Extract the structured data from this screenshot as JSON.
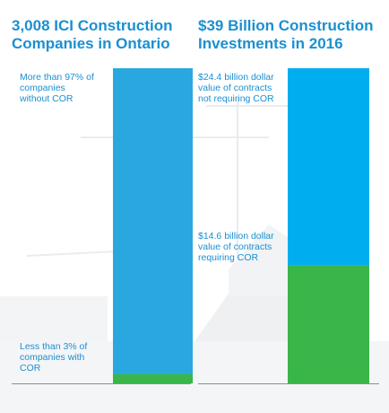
{
  "colors": {
    "title": "#1b8fd1",
    "label": "#1b8fd1",
    "blue": "#29a8e0",
    "blue_right": "#00aeef",
    "green": "#3ab54a",
    "baseline": "#8a8f95"
  },
  "left_chart": {
    "title_line1": "3,008 ICI Construction",
    "title_line2": "Companies in Ontario",
    "label_top_1": "More than 97% of",
    "label_top_2": "companies",
    "label_top_3": "without COR",
    "label_bottom_1": "Less than 3% of",
    "label_bottom_2": "companies with",
    "label_bottom_3": "COR"
  },
  "right_chart": {
    "title_line1": "$39 Billion Construction",
    "title_line2": "Investments in 2016",
    "label_top_1": "$24.4 billion dollar",
    "label_top_2": "value of contracts",
    "label_top_3": "not requiring COR",
    "label_bottom_1": "$14.6 billion dollar",
    "label_bottom_2": "value of contracts",
    "label_bottom_3": "requiring COR"
  },
  "chart_data": [
    {
      "type": "bar",
      "stacked": true,
      "title": "3,008 ICI Construction Companies in Ontario",
      "categories": [
        ""
      ],
      "series": [
        {
          "name": "Less than 3% of companies with COR",
          "values": [
            3
          ],
          "color": "#3ab54a"
        },
        {
          "name": "More than 97% of companies without COR",
          "values": [
            97
          ],
          "color": "#29a8e0"
        }
      ],
      "ylim": [
        0,
        100
      ],
      "grid": false
    },
    {
      "type": "bar",
      "stacked": true,
      "title": "$39 Billion Construction Investments in 2016",
      "categories": [
        ""
      ],
      "series": [
        {
          "name": "$14.6 billion dollar value of contracts requiring COR",
          "values": [
            14.6
          ],
          "color": "#3ab54a"
        },
        {
          "name": "$24.4 billion dollar value of contracts not requiring COR",
          "values": [
            24.4
          ],
          "color": "#00aeef"
        }
      ],
      "ylim": [
        0,
        39
      ],
      "grid": false
    }
  ]
}
